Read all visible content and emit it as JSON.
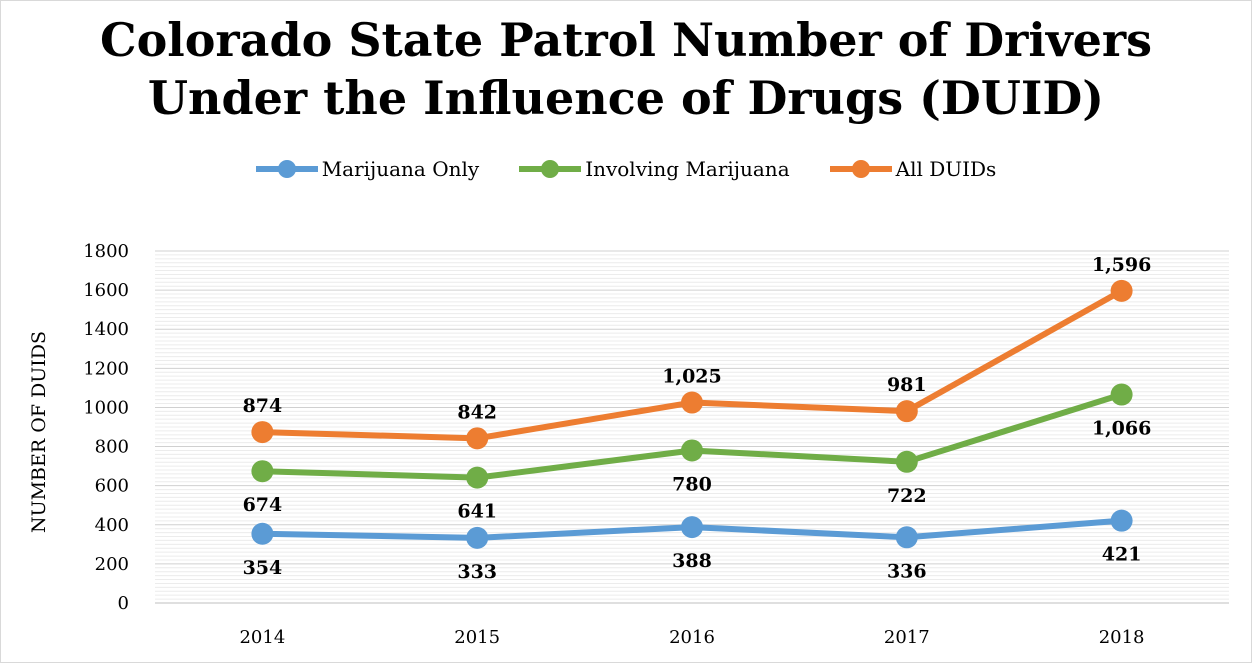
{
  "chart_data": {
    "type": "line",
    "title_lines": [
      "Colorado State Patrol Number of Drivers",
      "Under the Influence of Drugs (DUID)"
    ],
    "xlabel": "",
    "ylabel": "NUMBER OF DUIDS",
    "categories": [
      "2014",
      "2015",
      "2016",
      "2017",
      "2018"
    ],
    "ylim": [
      0,
      1800
    ],
    "yticks": [
      0,
      200,
      400,
      600,
      800,
      1000,
      1200,
      1400,
      1600,
      1800
    ],
    "grid": true,
    "legend_position": "top",
    "series": [
      {
        "name": "Marijuana Only",
        "color": "#5b9bd5",
        "values": [
          354,
          333,
          388,
          336,
          421
        ],
        "labels": [
          "354",
          "333",
          "388",
          "336",
          "421"
        ],
        "label_side": [
          "below",
          "below",
          "below",
          "below",
          "below"
        ]
      },
      {
        "name": "Involving Marijuana",
        "color": "#70ad47",
        "values": [
          674,
          641,
          780,
          722,
          1066
        ],
        "labels": [
          "674",
          "641",
          "780",
          "722",
          "1,066"
        ],
        "label_side": [
          "below",
          "below",
          "below",
          "below",
          "below"
        ]
      },
      {
        "name": "All DUIDs",
        "color": "#ed7d31",
        "values": [
          874,
          842,
          1025,
          981,
          1596
        ],
        "labels": [
          "874",
          "842",
          "1,025",
          "981",
          "1,596"
        ],
        "label_side": [
          "above",
          "above",
          "above",
          "above",
          "above"
        ]
      }
    ]
  }
}
